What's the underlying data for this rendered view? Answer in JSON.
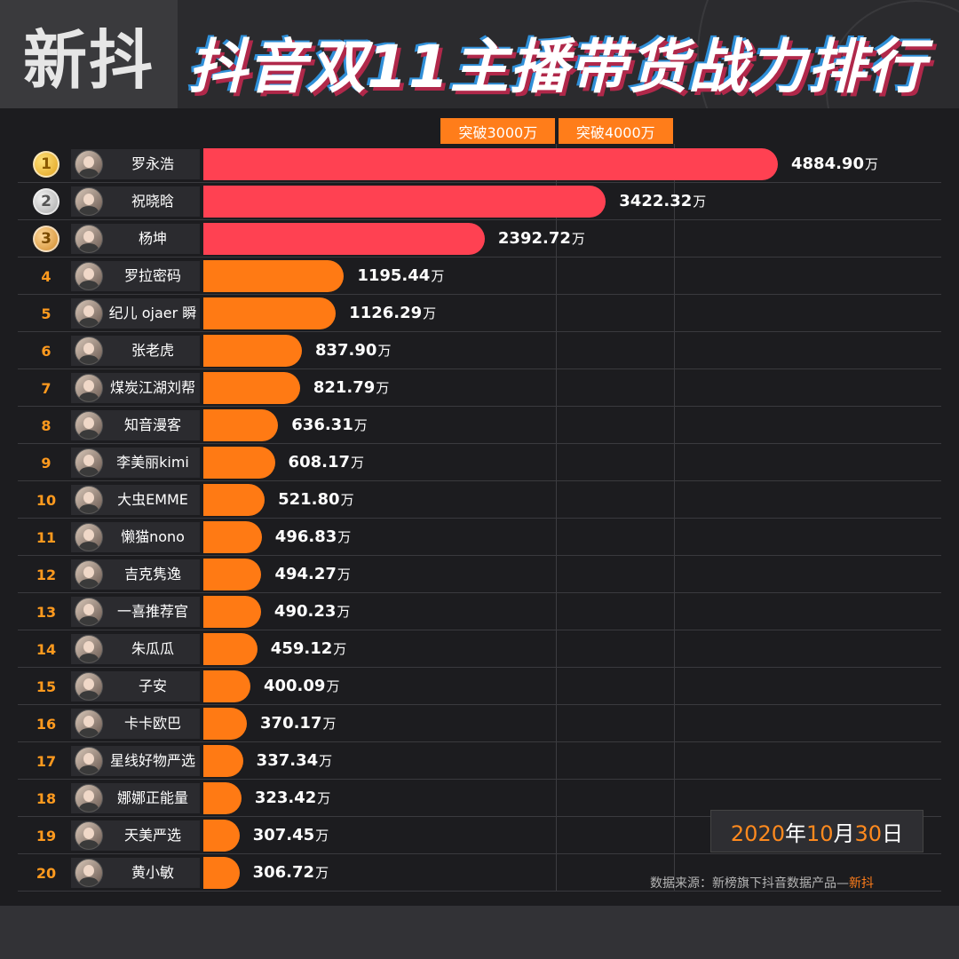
{
  "header": {
    "logo": "新抖",
    "title": "抖音双11主播带货战力排行"
  },
  "colors": {
    "top_bar": "#ff4152",
    "other_bar": "#ff7a14",
    "accent": "#ff8a1e",
    "background": "#1c1c1f"
  },
  "milestones": [
    {
      "label": "突破3000万",
      "value": 3000
    },
    {
      "label": "突破4000万",
      "value": 4000
    }
  ],
  "chart_data": {
    "type": "bar",
    "orientation": "horizontal",
    "unit": "万",
    "categories": [
      "罗永浩",
      "祝晓晗",
      "杨坤",
      "罗拉密码",
      "纪儿 ojaer 瞬",
      "张老虎",
      "煤炭江湖刘帮",
      "知音漫客",
      "李美丽kimi",
      "大虫EMME",
      "懒猫nono",
      "吉克隽逸",
      "一喜推荐官",
      "朱瓜瓜",
      "子安",
      "卡卡欧巴",
      "星线好物严选",
      "娜娜正能量",
      "天美严选",
      "黄小敏"
    ],
    "values": [
      4884.9,
      3422.32,
      2392.72,
      1195.44,
      1126.29,
      837.9,
      821.79,
      636.31,
      608.17,
      521.8,
      496.83,
      494.27,
      490.23,
      459.12,
      400.09,
      370.17,
      337.34,
      323.42,
      307.45,
      306.72
    ],
    "value_labels": [
      "4884.90",
      "3422.32",
      "2392.72",
      "1195.44",
      "1126.29",
      "837.90",
      "821.79",
      "636.31",
      "608.17",
      "521.80",
      "496.83",
      "494.27",
      "490.23",
      "459.12",
      "400.09",
      "370.17",
      "337.34",
      "323.42",
      "307.45",
      "306.72"
    ],
    "ranks": [
      "1",
      "2",
      "3",
      "4",
      "5",
      "6",
      "7",
      "8",
      "9",
      "10",
      "11",
      "12",
      "13",
      "14",
      "15",
      "16",
      "17",
      "18",
      "19",
      "20"
    ],
    "medals": [
      "gold",
      "silver",
      "bronze"
    ],
    "xlim": [
      0,
      4884.9
    ]
  },
  "date": {
    "year": "2020",
    "year_suffix": "年",
    "month": "10",
    "month_suffix": "月",
    "day": "30",
    "day_suffix": "日"
  },
  "source": {
    "prefix": "数据来源：新榜旗下抖音数据产品—",
    "brand": "新抖"
  }
}
